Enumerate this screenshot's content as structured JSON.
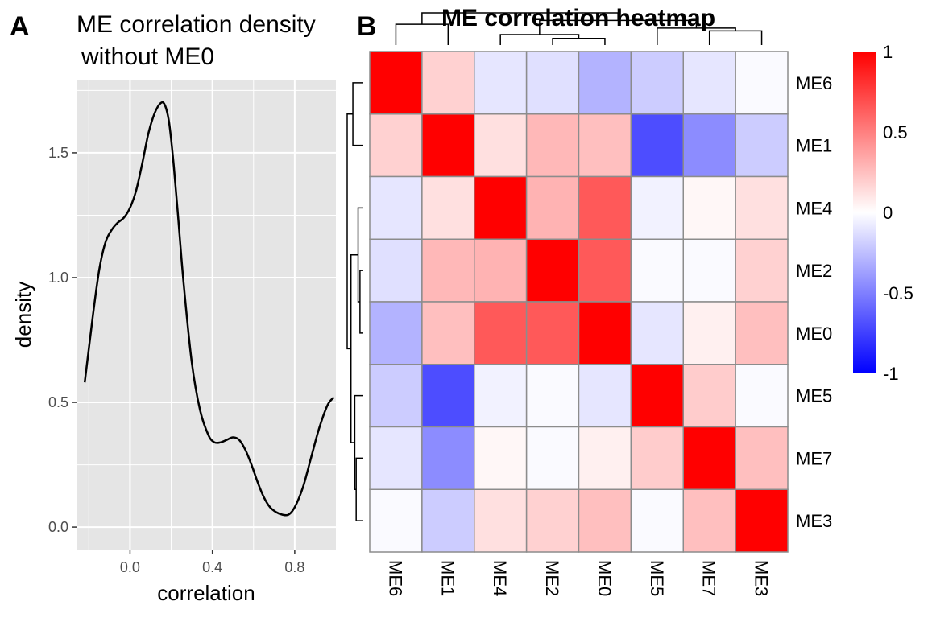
{
  "panel_a_label": "A",
  "panel_b_label": "B",
  "chart_data": [
    {
      "type": "line",
      "title_line1": "ME correlation density",
      "title_line2": "without ME0",
      "xlabel": "correlation",
      "ylabel": "density",
      "xlim": [
        -0.26,
        1.0
      ],
      "ylim": [
        -0.09,
        1.79
      ],
      "xticks": [
        0.0,
        0.4,
        0.8
      ],
      "xtick_labels": [
        "0.0",
        "0.4",
        "0.8"
      ],
      "yticks": [
        0.0,
        0.5,
        1.0,
        1.5
      ],
      "ytick_labels": [
        "0.0",
        "0.5",
        "1.0",
        "1.5"
      ],
      "grid": true,
      "background": "#e5e5e5",
      "line_color": "#000000",
      "x": [
        -0.22,
        -0.18,
        -0.15,
        -0.12,
        -0.09,
        -0.06,
        -0.03,
        0.0,
        0.03,
        0.06,
        0.09,
        0.12,
        0.15,
        0.17,
        0.19,
        0.21,
        0.23,
        0.26,
        0.3,
        0.34,
        0.38,
        0.41,
        0.44,
        0.47,
        0.5,
        0.53,
        0.56,
        0.59,
        0.62,
        0.65,
        0.68,
        0.71,
        0.74,
        0.77,
        0.8,
        0.84,
        0.88,
        0.92,
        0.96,
        0.99
      ],
      "y": [
        0.58,
        0.85,
        1.03,
        1.14,
        1.19,
        1.22,
        1.24,
        1.28,
        1.35,
        1.46,
        1.58,
        1.66,
        1.7,
        1.69,
        1.62,
        1.47,
        1.28,
        0.98,
        0.66,
        0.47,
        0.37,
        0.34,
        0.34,
        0.35,
        0.36,
        0.35,
        0.31,
        0.25,
        0.18,
        0.12,
        0.08,
        0.06,
        0.05,
        0.05,
        0.08,
        0.16,
        0.28,
        0.4,
        0.49,
        0.52
      ]
    },
    {
      "type": "heatmap",
      "title": "ME correlation heatmap",
      "rows": [
        "ME6",
        "ME1",
        "ME4",
        "ME2",
        "ME0",
        "ME5",
        "ME7",
        "ME3"
      ],
      "cols": [
        "ME6",
        "ME1",
        "ME4",
        "ME2",
        "ME0",
        "ME5",
        "ME7",
        "ME3"
      ],
      "values": [
        [
          1.0,
          0.18,
          -0.1,
          -0.12,
          -0.3,
          -0.2,
          -0.1,
          -0.02
        ],
        [
          0.18,
          1.0,
          0.12,
          0.28,
          0.25,
          -0.7,
          -0.45,
          -0.2
        ],
        [
          -0.1,
          0.12,
          1.0,
          0.3,
          0.65,
          -0.05,
          0.03,
          0.12
        ],
        [
          -0.12,
          0.28,
          0.3,
          1.0,
          0.65,
          -0.02,
          -0.02,
          0.18
        ],
        [
          -0.3,
          0.25,
          0.65,
          0.65,
          1.0,
          -0.1,
          0.06,
          0.25
        ],
        [
          -0.2,
          -0.7,
          -0.05,
          -0.02,
          -0.1,
          1.0,
          0.2,
          -0.02
        ],
        [
          -0.1,
          -0.45,
          0.03,
          -0.02,
          0.06,
          0.2,
          1.0,
          0.25
        ],
        [
          -0.02,
          -0.2,
          0.12,
          0.18,
          0.25,
          -0.02,
          0.25,
          1.0
        ]
      ],
      "color_low": "#0000ff",
      "color_mid": "#ffffff",
      "color_high": "#ff0000",
      "legend_ticks": [
        1,
        0.5,
        0,
        -0.5,
        -1
      ],
      "legend_tick_labels": [
        "1",
        "0.5",
        "0",
        "-0.5",
        "-1"
      ],
      "legend_position": "right",
      "dendrogram": {
        "leaf_order": [
          "ME6",
          "ME1",
          "ME4",
          "ME2",
          "ME0",
          "ME5",
          "ME7",
          "ME3"
        ],
        "merges": [
          {
            "a": 3,
            "b": 4,
            "h": 0.35
          },
          {
            "a": 2,
            "b": 8,
            "h": 0.55
          },
          {
            "a": 6,
            "b": 7,
            "h": 0.75
          },
          {
            "a": 5,
            "b": 10,
            "h": 0.9
          },
          {
            "a": 0,
            "b": 1,
            "h": 1.1
          },
          {
            "a": 9,
            "b": 11,
            "h": 1.3
          },
          {
            "a": 12,
            "b": 13,
            "h": 1.7
          }
        ],
        "max_height": 1.7
      }
    }
  ]
}
